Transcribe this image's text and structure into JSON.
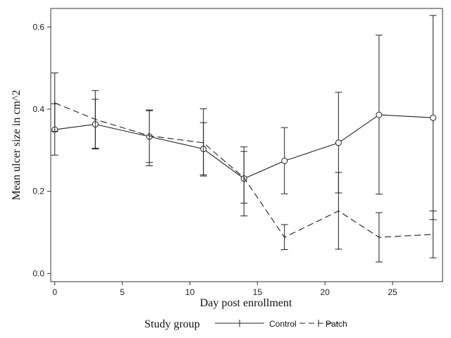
{
  "chart_data": {
    "type": "line",
    "xlabel": "Day post enrollment",
    "ylabel": "Mean ulcer size in cm^2",
    "xlim": [
      -0.3,
      28.7
    ],
    "ylim": [
      -0.02,
      0.645
    ],
    "xticks": [
      0,
      5,
      10,
      15,
      20,
      25
    ],
    "yticks": [
      0.0,
      0.2,
      0.4,
      0.6
    ],
    "ytick_labels": [
      "0.0",
      "0.2",
      "0.4",
      "0.6"
    ],
    "legend_title": "Study group",
    "legend_position": "bottom",
    "series": [
      {
        "name": "Control",
        "style": "solid",
        "marker": "circle",
        "x": [
          0,
          3,
          7,
          11,
          14,
          17,
          21,
          24,
          28
        ],
        "values": [
          0.35,
          0.363,
          0.333,
          0.303,
          0.231,
          0.274,
          0.318,
          0.386,
          0.379
        ],
        "lower": [
          0.288,
          0.303,
          0.27,
          0.24,
          0.14,
          0.194,
          0.196,
          0.193,
          0.131
        ],
        "upper": [
          0.413,
          0.424,
          0.396,
          0.367,
          0.308,
          0.355,
          0.441,
          0.58,
          0.628
        ]
      },
      {
        "name": "Patch",
        "style": "dashed",
        "marker": "none",
        "x": [
          0,
          3,
          7,
          11,
          14,
          17,
          21,
          24,
          28
        ],
        "values": [
          0.415,
          0.375,
          0.335,
          0.318,
          0.233,
          0.088,
          0.152,
          0.088,
          0.095
        ],
        "lower": [
          0.346,
          0.305,
          0.262,
          0.237,
          0.171,
          0.058,
          0.059,
          0.028,
          0.038
        ],
        "upper": [
          0.488,
          0.445,
          0.398,
          0.401,
          0.297,
          0.119,
          0.246,
          0.148,
          0.152
        ]
      }
    ]
  },
  "colors": {
    "line": "#222222",
    "frame": "#333333",
    "background": "#ffffff"
  }
}
